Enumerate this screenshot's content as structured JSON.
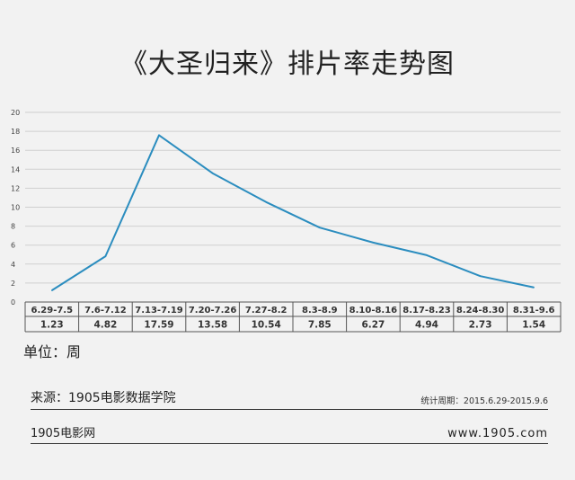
{
  "title": "《大圣归来》排片率走势图",
  "unit_label": "单位：周",
  "source": "来源：1905电影数据学院",
  "period": "统计周期：2015.6.29-2015.9.6",
  "brand": "1905电影网",
  "website": "www.1905.com",
  "colors": {
    "line": "#2b8dbf",
    "grid": "#cfcfcf",
    "table_border": "#555555"
  },
  "chart_data": {
    "type": "line",
    "title": "《大圣归来》排片率走势图",
    "categories": [
      "6.29-7.5",
      "7.6-7.12",
      "7.13-7.19",
      "7.20-7.26",
      "7.27-8.2",
      "8.3-8.9",
      "8.10-8.16",
      "8.17-8.23",
      "8.24-8.30",
      "8.31-9.6"
    ],
    "values": [
      1.23,
      4.82,
      17.59,
      13.58,
      10.54,
      7.85,
      6.27,
      4.94,
      2.73,
      1.54
    ],
    "value_labels": [
      "1.23",
      "4.82",
      "17.59",
      "13.58",
      "10.54",
      "7.85",
      "6.27",
      "4.94",
      "2.73",
      "1.54"
    ],
    "yticks": [
      "0",
      "2",
      "4",
      "6",
      "8",
      "10",
      "12",
      "14",
      "16",
      "18",
      "20"
    ],
    "ylim": [
      0,
      20
    ],
    "grid": true,
    "legend": "none"
  }
}
